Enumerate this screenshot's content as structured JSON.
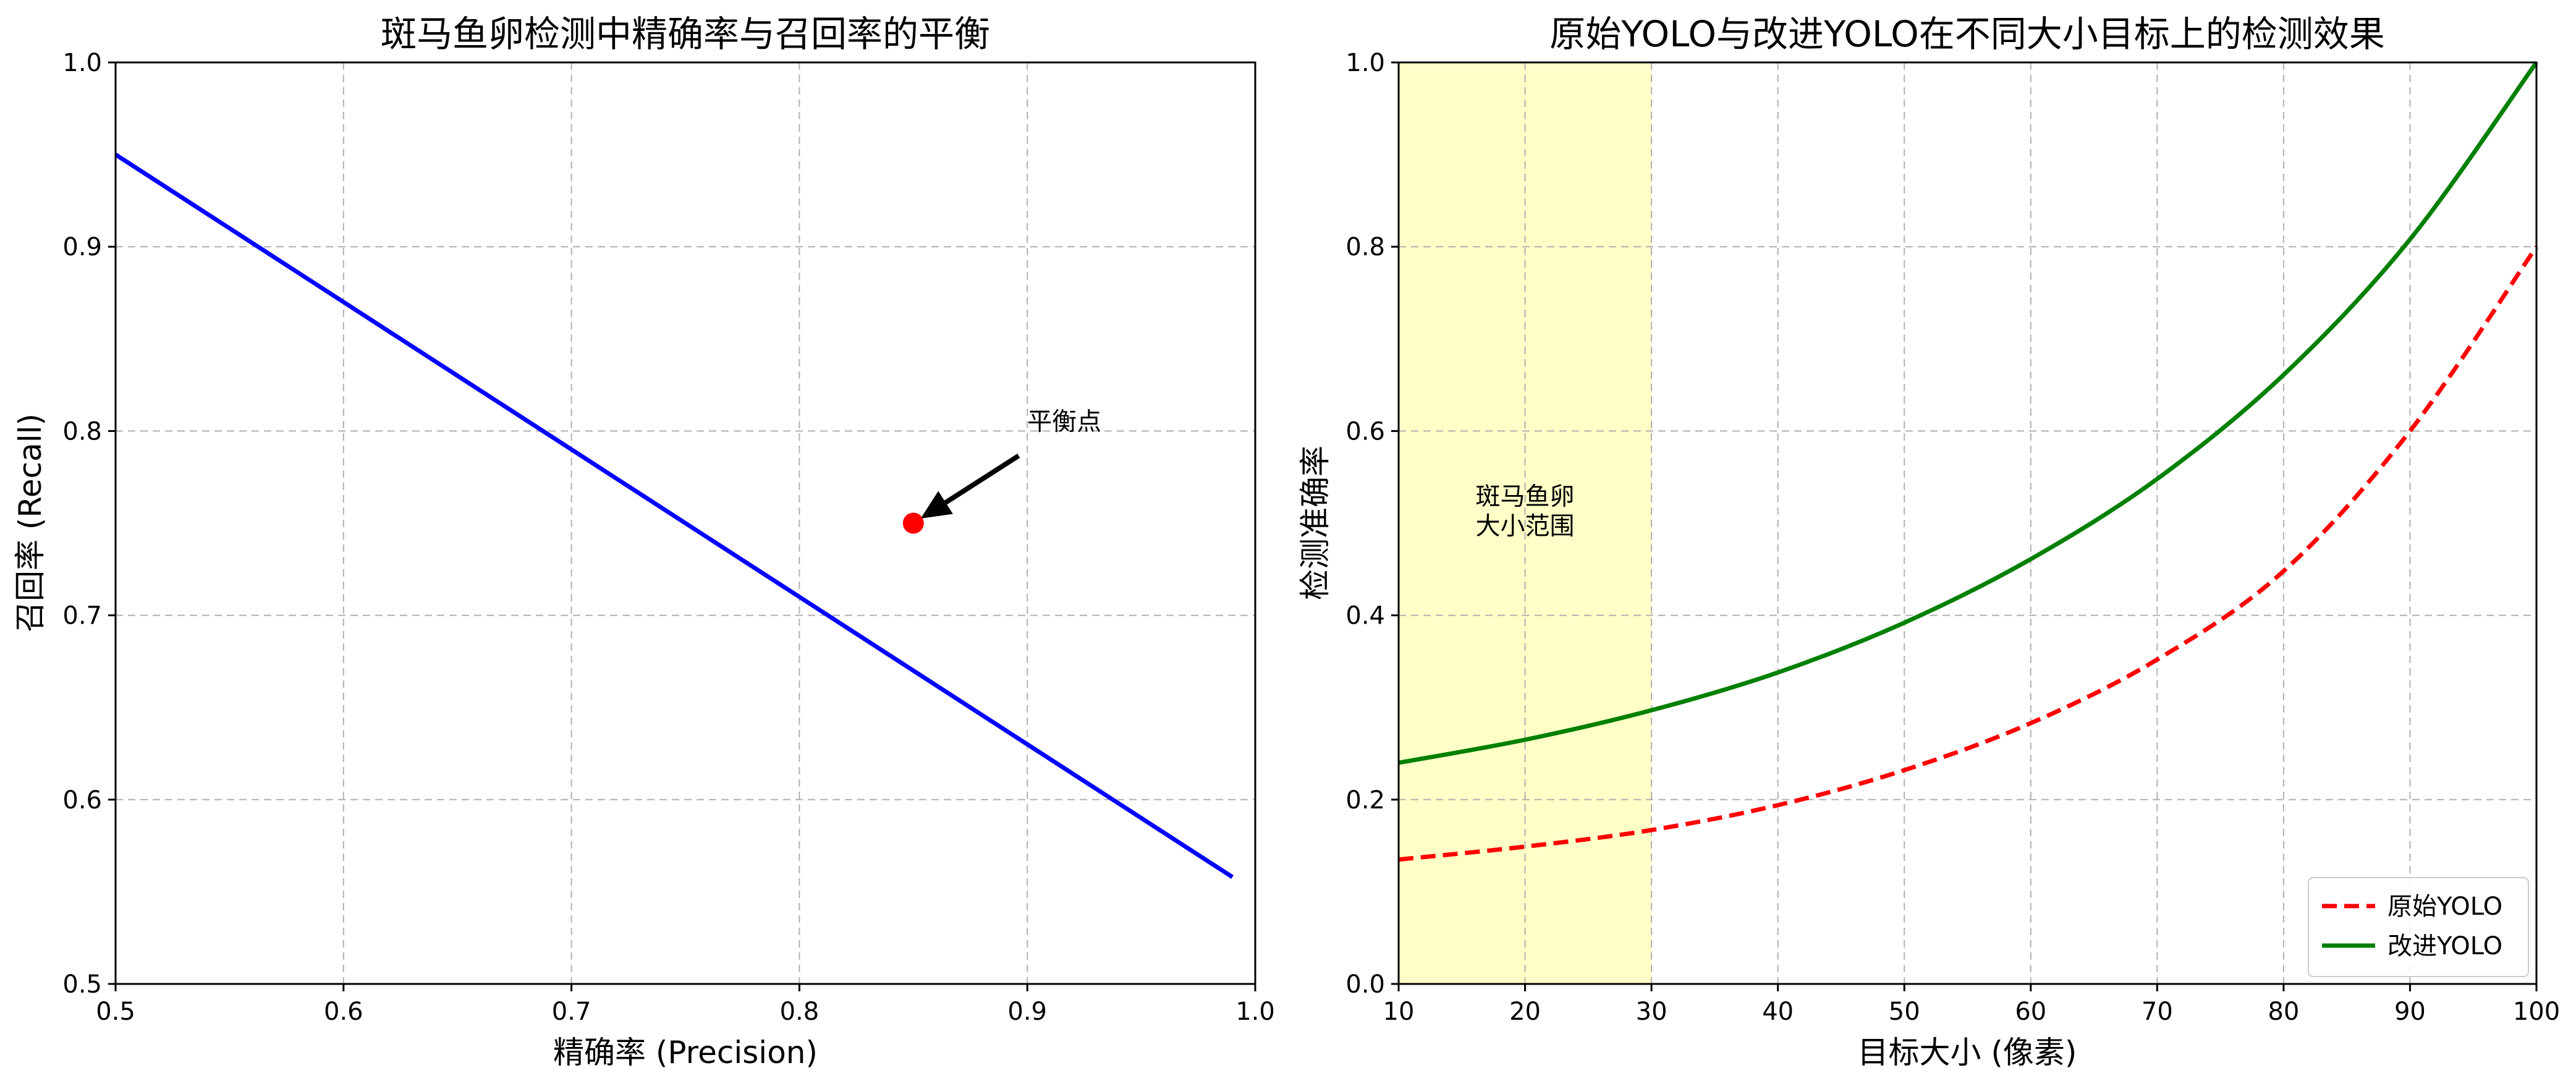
{
  "chart_data": [
    {
      "type": "line",
      "title": "斑马鱼卵检测中精确率与召回率的平衡",
      "xlabel": "精确率 (Precision)",
      "ylabel": "召回率 (Recall)",
      "xlim": [
        0.5,
        1.0
      ],
      "ylim": [
        0.5,
        1.0
      ],
      "xticks": [
        "0.5",
        "0.6",
        "0.7",
        "0.8",
        "0.9",
        "1.0"
      ],
      "yticks": [
        "0.5",
        "0.6",
        "0.7",
        "0.8",
        "0.9",
        "1.0"
      ],
      "grid": true,
      "series": [
        {
          "x": [
            0.5,
            0.99
          ],
          "y": [
            0.95,
            0.558
          ],
          "color": "#0000ff",
          "style": "solid"
        }
      ],
      "point": {
        "x": 0.85,
        "y": 0.75,
        "color": "#ff0000"
      },
      "annotation": {
        "text": "平衡点",
        "x": 0.9,
        "y": 0.8
      }
    },
    {
      "type": "line",
      "title": "原始YOLO与改进YOLO在不同大小目标上的检测效果",
      "xlabel": "目标大小 (像素)",
      "ylabel": "检测准确率",
      "xlim": [
        10,
        100
      ],
      "ylim": [
        0.0,
        1.0
      ],
      "xticks": [
        "10",
        "20",
        "30",
        "40",
        "50",
        "60",
        "70",
        "80",
        "90",
        "100"
      ],
      "yticks": [
        "0.0",
        "0.2",
        "0.4",
        "0.6",
        "0.8",
        "1.0"
      ],
      "grid": true,
      "legend_position": "lower-right",
      "shaded_region": {
        "x": [
          10,
          30
        ],
        "color": "#ffff99",
        "label_lines": [
          "斑马鱼卵",
          "大小范围"
        ]
      },
      "x": [
        10,
        20,
        30,
        40,
        50,
        60,
        70,
        80,
        90,
        100
      ],
      "series": [
        {
          "name": "原始YOLO",
          "color": "#ff0000",
          "style": "dashed",
          "values": [
            0.135,
            0.149,
            0.167,
            0.194,
            0.232,
            0.283,
            0.352,
            0.448,
            0.6,
            0.8
          ]
        },
        {
          "name": "改进YOLO",
          "color": "#008000",
          "style": "solid",
          "values": [
            0.24,
            0.265,
            0.297,
            0.338,
            0.392,
            0.461,
            0.548,
            0.661,
            0.808,
            1.0
          ]
        }
      ]
    }
  ]
}
